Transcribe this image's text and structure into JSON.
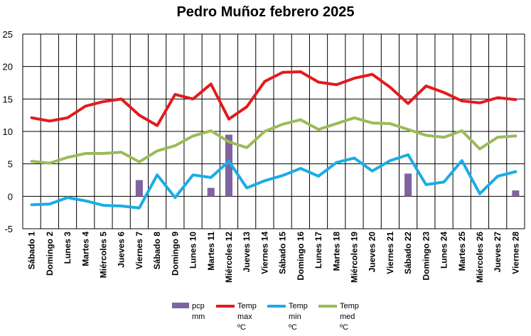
{
  "chart_data": {
    "type": "bar+line",
    "title": "Pedro Muñoz febrero 2025",
    "categories": [
      "Sábado 1",
      "Domingo 2",
      "Lunes 3",
      "Martes 4",
      "Miércoles 5",
      "Jueves 6",
      "Viernes 7",
      "Sábado 8",
      "Domingo 9",
      "Lunes 10",
      "Martes 11",
      "Miércoles 12",
      "Jueves 13",
      "Viernes 14",
      "Sábado 15",
      "Domingo 16",
      "Lunes 17",
      "Martes 18",
      "Miércoles 19",
      "Jueves 20",
      "Viernes 21",
      "Sábado 22",
      "Domingo 23",
      "Lunes 24",
      "Martes 25",
      "Miércoles 26",
      "Jueves 27",
      "Viernes 28"
    ],
    "ylim": [
      -5,
      25
    ],
    "yticks": [
      "-5",
      "0",
      "5",
      "10",
      "15",
      "20",
      "25"
    ],
    "grid": true,
    "legend_position": "bottom",
    "series": [
      {
        "name": "pcp\nmm",
        "type": "bar",
        "color": "#8064A2",
        "values": [
          0,
          0,
          0,
          0,
          0,
          0,
          2.5,
          0,
          0,
          0,
          1.3,
          9.5,
          0,
          0,
          0,
          0,
          0,
          0,
          0,
          0,
          0,
          3.5,
          0,
          0,
          0,
          0,
          0,
          0.9
        ]
      },
      {
        "name": "Temp\nmax\nºC",
        "type": "line",
        "color": "#E41A1C",
        "values": [
          12.1,
          11.6,
          12.1,
          13.9,
          14.6,
          15.0,
          12.5,
          10.9,
          15.7,
          15.0,
          17.3,
          11.9,
          13.8,
          17.7,
          19.1,
          19.2,
          17.6,
          17.2,
          18.2,
          18.8,
          16.8,
          14.3,
          17.0,
          16.0,
          14.7,
          14.4,
          15.2,
          14.9
        ]
      },
      {
        "name": "Temp\nmin\nºC",
        "type": "line",
        "color": "#1AACE6",
        "values": [
          -1.3,
          -1.2,
          -0.2,
          -0.7,
          -1.4,
          -1.5,
          -1.8,
          3.3,
          -0.2,
          3.3,
          2.9,
          5.4,
          1.3,
          2.4,
          3.2,
          4.3,
          3.1,
          5.2,
          5.9,
          3.9,
          5.5,
          6.4,
          1.8,
          2.2,
          5.5,
          0.4,
          3.1,
          3.8
        ]
      },
      {
        "name": "Temp\nmed\nºC",
        "type": "line",
        "color": "#9BBB59",
        "values": [
          5.4,
          5.1,
          6.0,
          6.6,
          6.6,
          6.8,
          5.3,
          7.0,
          7.8,
          9.3,
          10.1,
          8.4,
          7.5,
          10.0,
          11.1,
          11.8,
          10.3,
          11.2,
          12.1,
          11.3,
          11.2,
          10.3,
          9.4,
          9.1,
          10.1,
          7.3,
          9.1,
          9.3
        ]
      }
    ]
  }
}
